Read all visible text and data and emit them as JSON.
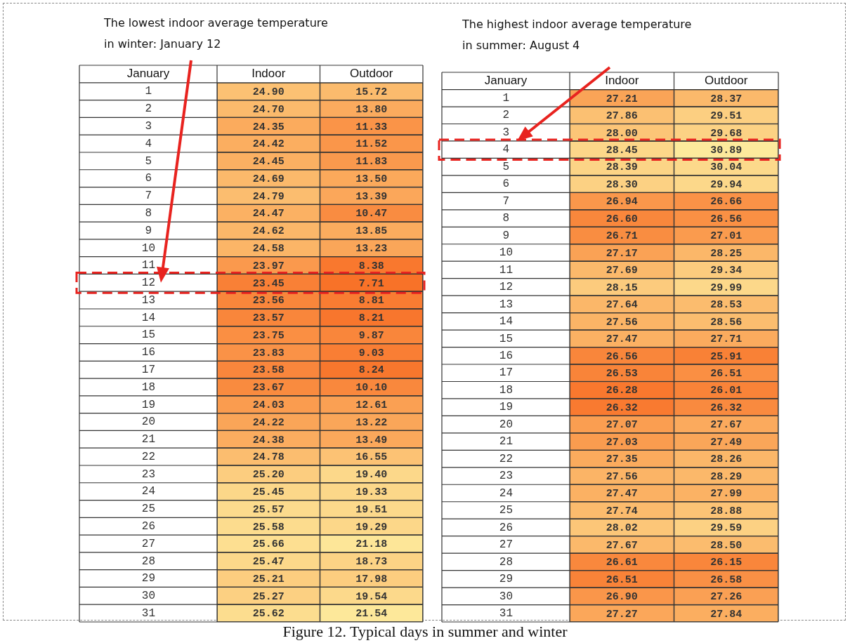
{
  "chart_data": [
    {
      "type": "heatmap",
      "ylabel": "January",
      "categories": [
        "Indoor",
        "Outdoor"
      ],
      "y_categories": [
        "1",
        "2",
        "3",
        "4",
        "5",
        "6",
        "7",
        "8",
        "9",
        "10",
        "11",
        "12",
        "13",
        "14",
        "15",
        "16",
        "17",
        "18",
        "19",
        "20",
        "21",
        "22",
        "23",
        "24",
        "25",
        "26",
        "27",
        "28",
        "29",
        "30",
        "31"
      ],
      "cells": [
        [
          24.9,
          15.72
        ],
        [
          24.7,
          13.8
        ],
        [
          24.35,
          11.33
        ],
        [
          24.42,
          11.52
        ],
        [
          24.45,
          11.83
        ],
        [
          24.69,
          13.5
        ],
        [
          24.79,
          13.39
        ],
        [
          24.47,
          10.47
        ],
        [
          24.62,
          13.85
        ],
        [
          24.58,
          13.23
        ],
        [
          23.97,
          8.38
        ],
        [
          23.45,
          7.71
        ],
        [
          23.56,
          8.81
        ],
        [
          23.57,
          8.21
        ],
        [
          23.75,
          9.87
        ],
        [
          23.83,
          9.03
        ],
        [
          23.58,
          8.24
        ],
        [
          23.67,
          10.1
        ],
        [
          24.03,
          12.61
        ],
        [
          24.22,
          13.22
        ],
        [
          24.38,
          13.49
        ],
        [
          24.78,
          16.55
        ],
        [
          25.2,
          19.4
        ],
        [
          25.45,
          19.33
        ],
        [
          25.57,
          19.51
        ],
        [
          25.58,
          19.29
        ],
        [
          25.66,
          21.18
        ],
        [
          25.47,
          18.73
        ],
        [
          25.21,
          17.98
        ],
        [
          25.27,
          19.54
        ],
        [
          25.62,
          21.54
        ]
      ],
      "cell_labels": [
        [
          "24.90",
          "15.72"
        ],
        [
          "24.70",
          "13.80"
        ],
        [
          "24.35",
          "11.33"
        ],
        [
          "24.42",
          "11.52"
        ],
        [
          "24.45",
          "11.83"
        ],
        [
          "24.69",
          "13.50"
        ],
        [
          "24.79",
          "13.39"
        ],
        [
          "24.47",
          "10.47"
        ],
        [
          "24.62",
          "13.85"
        ],
        [
          "24.58",
          "13.23"
        ],
        [
          "23.97",
          "8.38"
        ],
        [
          "23.45",
          "7.71"
        ],
        [
          "23.56",
          "8.81"
        ],
        [
          "23.57",
          "8.21"
        ],
        [
          "23.75",
          "9.87"
        ],
        [
          "23.83",
          "9.03"
        ],
        [
          "23.58",
          "8.24"
        ],
        [
          "23.67",
          "10.10"
        ],
        [
          "24.03",
          "12.61"
        ],
        [
          "24.22",
          "13.22"
        ],
        [
          "24.38",
          "13.49"
        ],
        [
          "24.78",
          "16.55"
        ],
        [
          "25.20",
          "19.40"
        ],
        [
          "25.45",
          "19.33"
        ],
        [
          "25.57",
          "19.51"
        ],
        [
          "25.58",
          "19.29"
        ],
        [
          "25.66",
          "21.18"
        ],
        [
          "25.47",
          "18.73"
        ],
        [
          "25.21",
          "17.98"
        ],
        [
          "25.27",
          "19.54"
        ],
        [
          "25.62",
          "21.54"
        ]
      ],
      "annotations": [
        "The lowest indoor average temperature in winter: January 12",
        "Figure 12. Typical days in summer and winter"
      ]
    },
    {
      "type": "heatmap",
      "ylabel": "January",
      "categories": [
        "Indoor",
        "Outdoor"
      ],
      "y_categories": [
        "1",
        "2",
        "3",
        "4",
        "5",
        "6",
        "7",
        "8",
        "9",
        "10",
        "11",
        "12",
        "13",
        "14",
        "15",
        "16",
        "17",
        "18",
        "19",
        "20",
        "21",
        "22",
        "23",
        "24",
        "25",
        "26",
        "27",
        "28",
        "29",
        "30",
        "31"
      ],
      "cells": [
        [
          27.21,
          28.37
        ],
        [
          27.86,
          29.51
        ],
        [
          28.0,
          29.68
        ],
        [
          28.45,
          30.89
        ],
        [
          28.39,
          30.04
        ],
        [
          28.3,
          29.94
        ],
        [
          26.94,
          26.66
        ],
        [
          26.6,
          26.56
        ],
        [
          26.71,
          27.01
        ],
        [
          27.17,
          28.25
        ],
        [
          27.69,
          29.34
        ],
        [
          28.15,
          29.99
        ],
        [
          27.64,
          28.53
        ],
        [
          27.56,
          28.56
        ],
        [
          27.47,
          27.71
        ],
        [
          26.56,
          25.91
        ],
        [
          26.53,
          26.51
        ],
        [
          26.28,
          26.01
        ],
        [
          26.32,
          26.32
        ],
        [
          27.07,
          27.67
        ],
        [
          27.03,
          27.49
        ],
        [
          27.35,
          28.26
        ],
        [
          27.56,
          28.29
        ],
        [
          27.47,
          27.99
        ],
        [
          27.74,
          28.88
        ],
        [
          28.02,
          29.59
        ],
        [
          27.67,
          28.5
        ],
        [
          26.61,
          26.15
        ],
        [
          26.51,
          26.58
        ],
        [
          26.9,
          27.26
        ],
        [
          27.27,
          27.84
        ]
      ],
      "cell_labels": [
        [
          "27.21",
          "28.37"
        ],
        [
          "27.86",
          "29.51"
        ],
        [
          "28.00",
          "29.68"
        ],
        [
          "28.45",
          "30.89"
        ],
        [
          "28.39",
          "30.04"
        ],
        [
          "28.30",
          "29.94"
        ],
        [
          "26.94",
          "26.66"
        ],
        [
          "26.60",
          "26.56"
        ],
        [
          "26.71",
          "27.01"
        ],
        [
          "27.17",
          "28.25"
        ],
        [
          "27.69",
          "29.34"
        ],
        [
          "28.15",
          "29.99"
        ],
        [
          "27.64",
          "28.53"
        ],
        [
          "27.56",
          "28.56"
        ],
        [
          "27.47",
          "27.71"
        ],
        [
          "26.56",
          "25.91"
        ],
        [
          "26.53",
          "26.51"
        ],
        [
          "26.28",
          "26.01"
        ],
        [
          "26.32",
          "26.32"
        ],
        [
          "27.07",
          "27.67"
        ],
        [
          "27.03",
          "27.49"
        ],
        [
          "27.35",
          "28.26"
        ],
        [
          "27.56",
          "28.29"
        ],
        [
          "27.47",
          "27.99"
        ],
        [
          "27.74",
          "28.88"
        ],
        [
          "28.02",
          "29.59"
        ],
        [
          "27.67",
          "28.50"
        ],
        [
          "26.61",
          "26.15"
        ],
        [
          "26.51",
          "26.58"
        ],
        [
          "26.90",
          "27.26"
        ],
        [
          "27.27",
          "27.84"
        ]
      ],
      "annotations": [
        "The highest indoor average temperature in summer: August 4"
      ]
    }
  ]
}
